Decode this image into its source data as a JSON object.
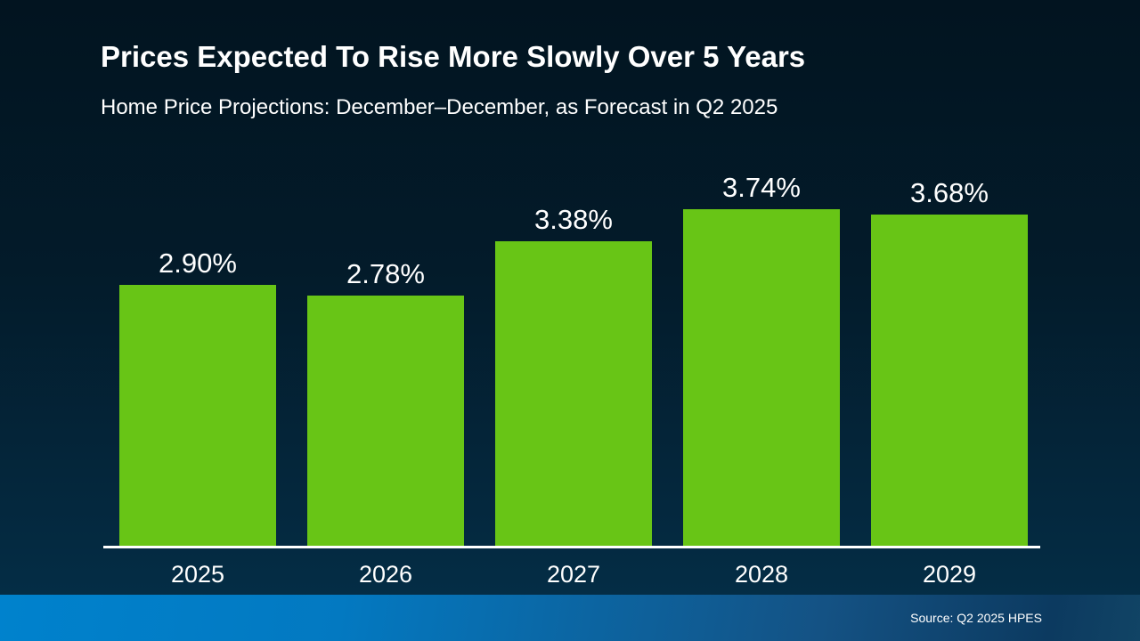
{
  "slide": {
    "title": "Prices Expected To Rise More Slowly Over 5 Years",
    "subtitle": "Home Price Projections: December–December, as Forecast in Q2 2025",
    "source": "Source: Q2 2025 HPES"
  },
  "colors": {
    "bar": "#68c516",
    "background_top": "#021420",
    "background_bottom": "#05304a",
    "footer_left": "#0082cd",
    "footer_right": "#0c3a60",
    "axis": "#ffffff",
    "text": "#ffffff"
  },
  "chart_data": {
    "type": "bar",
    "title": "Prices Expected To Rise More Slowly Over 5 Years",
    "subtitle": "Home Price Projections: December–December, as Forecast in Q2 2025",
    "categories": [
      "2025",
      "2026",
      "2027",
      "2028",
      "2029"
    ],
    "values": [
      2.9,
      2.78,
      3.38,
      3.74,
      3.68
    ],
    "value_labels": [
      "2.90%",
      "2.78%",
      "3.38%",
      "3.74%",
      "3.68%"
    ],
    "xlabel": "",
    "ylabel": "",
    "ylim": [
      0,
      3.74
    ],
    "grid": false,
    "legend": false,
    "annotations": [
      "Source: Q2 2025 HPES"
    ]
  }
}
